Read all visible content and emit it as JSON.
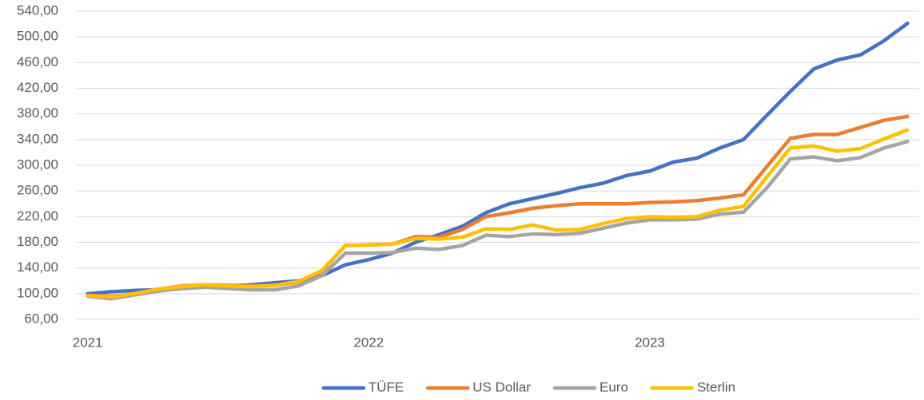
{
  "chart_data": {
    "type": "line",
    "categories": [
      "2021",
      null,
      null,
      null,
      null,
      null,
      null,
      null,
      null,
      null,
      null,
      null,
      "2022",
      null,
      null,
      null,
      null,
      null,
      null,
      null,
      null,
      null,
      null,
      null,
      "2023",
      null,
      null,
      null,
      null,
      null,
      null,
      null,
      null,
      null,
      null,
      null
    ],
    "series": [
      {
        "name": "TÜFE",
        "color": "#4472c4",
        "values": [
          100,
          103,
          105,
          106,
          108,
          110,
          112,
          114,
          117,
          120,
          128,
          145,
          153,
          163,
          180,
          192,
          205,
          226,
          240,
          248,
          256,
          265,
          272,
          284,
          291,
          305,
          311,
          327,
          340,
          378,
          415,
          450,
          464,
          472,
          494,
          521
        ]
      },
      {
        "name": "US Dollar",
        "color": "#ed7d31",
        "values": [
          97,
          96,
          100,
          107,
          112,
          114,
          113,
          112,
          113,
          118,
          135,
          175,
          176,
          177,
          189,
          188,
          200,
          220,
          226,
          233,
          237,
          240,
          240,
          240,
          242,
          243,
          245,
          249,
          254,
          298,
          342,
          348,
          348,
          359,
          370,
          376
        ]
      },
      {
        "name": "Euro",
        "color": "#a5a5a5",
        "values": [
          96,
          92,
          98,
          104,
          108,
          110,
          108,
          106,
          106,
          112,
          128,
          163,
          163,
          164,
          171,
          169,
          175,
          191,
          189,
          193,
          192,
          194,
          202,
          210,
          215,
          215,
          216,
          224,
          227,
          265,
          310,
          313,
          307,
          312,
          327,
          337
        ]
      },
      {
        "name": "Sterlin",
        "color": "#ffc000",
        "values": [
          97,
          95,
          100,
          107,
          111,
          114,
          112,
          111,
          113,
          119,
          136,
          175,
          176,
          177,
          186,
          185,
          188,
          201,
          200,
          207,
          199,
          200,
          209,
          217,
          220,
          219,
          220,
          230,
          236,
          282,
          327,
          330,
          322,
          326,
          341,
          355
        ]
      }
    ],
    "ylim": [
      60,
      540
    ],
    "yticks": [
      {
        "value": 60,
        "label": "60,00"
      },
      {
        "value": 100,
        "label": "100,00"
      },
      {
        "value": 140,
        "label": "140,00"
      },
      {
        "value": 180,
        "label": "180,00"
      },
      {
        "value": 220,
        "label": "220,00"
      },
      {
        "value": 260,
        "label": "260,00"
      },
      {
        "value": 300,
        "label": "300,00"
      },
      {
        "value": 340,
        "label": "340,00"
      },
      {
        "value": 380,
        "label": "380,00"
      },
      {
        "value": 420,
        "label": "420,00"
      },
      {
        "value": 460,
        "label": "460,00"
      },
      {
        "value": 500,
        "label": "500,00"
      },
      {
        "value": 540,
        "label": "540,00"
      }
    ],
    "grid": true,
    "legend": "bottom"
  }
}
